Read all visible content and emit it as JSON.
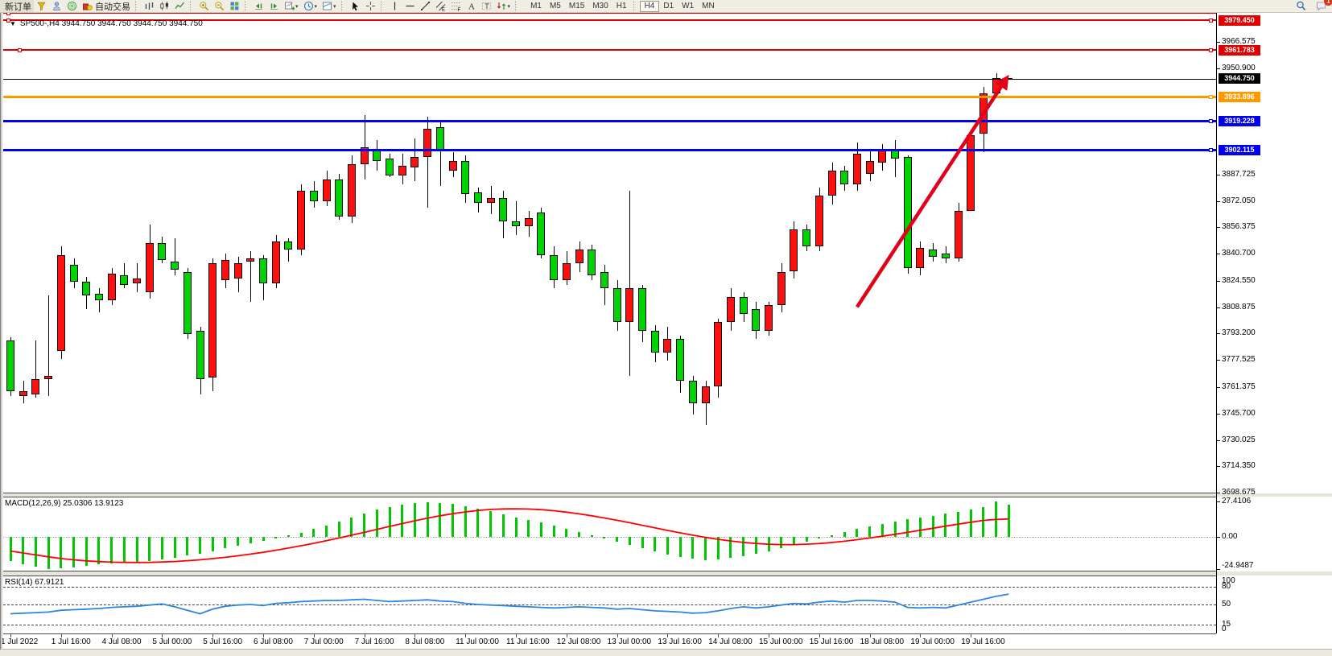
{
  "toolbar": {
    "new_order_label": "新订单",
    "auto_trading_label": "自动交易",
    "left_items": [
      {
        "type": "button",
        "name": "new-order-button",
        "label": "新订单"
      },
      {
        "type": "icon",
        "name": "funnel-icon",
        "icon": "funnel"
      },
      {
        "type": "icon",
        "name": "profile-icon",
        "icon": "person"
      },
      {
        "type": "icon",
        "name": "market-watch-icon",
        "icon": "sonar"
      },
      {
        "type": "button-icon",
        "name": "auto-trading-button",
        "icon": "autotrade",
        "label": "自动交易"
      },
      {
        "type": "sep"
      },
      {
        "type": "icon",
        "name": "bar-chart-icon",
        "icon": "bars"
      },
      {
        "type": "icon",
        "name": "candlestick-chart-icon",
        "icon": "candles"
      },
      {
        "type": "icon",
        "name": "line-chart-icon",
        "icon": "linechart"
      },
      {
        "type": "sep"
      },
      {
        "type": "icon",
        "name": "zoom-in-icon",
        "icon": "zoomin"
      },
      {
        "type": "icon",
        "name": "zoom-out-icon",
        "icon": "zoomout"
      },
      {
        "type": "icon",
        "name": "tile-windows-icon",
        "icon": "tile"
      },
      {
        "type": "sep"
      },
      {
        "type": "icon",
        "name": "auto-scroll-icon",
        "icon": "autoscroll"
      },
      {
        "type": "icon",
        "name": "chart-shift-icon",
        "icon": "chartshift"
      },
      {
        "type": "icon-dd",
        "name": "new-chart-icon",
        "icon": "newchart"
      },
      {
        "type": "icon-dd",
        "name": "period-clock-icon",
        "icon": "clock"
      },
      {
        "type": "icon-dd",
        "name": "template-icon",
        "icon": "template"
      },
      {
        "type": "sep"
      },
      {
        "type": "icon",
        "name": "cursor-icon",
        "icon": "cursor"
      },
      {
        "type": "icon",
        "name": "crosshair-icon",
        "icon": "crosshair"
      },
      {
        "type": "sep"
      },
      {
        "type": "icon",
        "name": "vertical-line-icon",
        "icon": "vline"
      },
      {
        "type": "icon",
        "name": "horizontal-line-icon",
        "icon": "hline"
      },
      {
        "type": "icon",
        "name": "trendline-icon",
        "icon": "trend"
      },
      {
        "type": "icon",
        "name": "equidistant-channel-icon",
        "icon": "channel"
      },
      {
        "type": "icon",
        "name": "fibonacci-icon",
        "icon": "fib"
      },
      {
        "type": "icon",
        "name": "text-icon",
        "icon": "textA"
      },
      {
        "type": "icon",
        "name": "text-label-icon",
        "icon": "labelT"
      },
      {
        "type": "icon-dd",
        "name": "arrows-icon",
        "icon": "arrows"
      },
      {
        "type": "sep"
      }
    ],
    "timeframes": [
      "M1",
      "M5",
      "M15",
      "M30",
      "H1",
      "H4",
      "D1",
      "W1",
      "MN"
    ],
    "active_timeframe": "H4",
    "search_tooltip": "search-icon",
    "notification_count": "1"
  },
  "chart": {
    "title_text": "SP500-,H4  3944.750 3944.750 3944.750 3944.750",
    "symbol": "SP500-",
    "period": "H4",
    "ohlc": [
      "3944.750",
      "3944.750",
      "3944.750",
      "3944.750"
    ]
  },
  "indicators": {
    "macd_label": "MACD(12,26,9) 25.0306 13.9123",
    "rsi_label": "RSI(14) 67.9121"
  },
  "chart_data": {
    "type": "candlestick",
    "title": "SP500- H4",
    "colors": {
      "bull": "#FF1010",
      "bear": "#00D400",
      "wick": "#000000",
      "macd_hist": "#00C800",
      "macd_signal": "#FF0000",
      "rsi_line": "#2E86E0",
      "arrow": "#E10019",
      "bid_line": "#000000"
    },
    "price_axis_ticks": [
      "3966.575",
      "3950.900",
      "3887.725",
      "3872.050",
      "3856.375",
      "3840.700",
      "3824.550",
      "3808.875",
      "3793.200",
      "3777.525",
      "3761.375",
      "3745.700",
      "3730.025",
      "3714.350",
      "3698.675"
    ],
    "hlines": [
      {
        "price": 3983.8,
        "color": "#E00000",
        "width": 2,
        "label": null,
        "left_handles": [
          8
        ]
      },
      {
        "price": 3979.45,
        "color": "#E00000",
        "width": 2,
        "label": "3979.450",
        "left_handles": [
          8
        ],
        "right_handle": true
      },
      {
        "price": 3961.783,
        "color": "#E00000",
        "width": 2,
        "label": "3961.783",
        "left_handles": [
          22
        ],
        "right_handle": true
      },
      {
        "price": 3933.896,
        "color": "#FF9900",
        "width": 3,
        "label": "3933.896",
        "right_handle": true
      },
      {
        "price": 3919.228,
        "color": "#0000EE",
        "width": 3,
        "label": "3919.228",
        "right_handle": true
      },
      {
        "price": 3902.115,
        "color": "#0000EE",
        "width": 3,
        "label": "3902.115",
        "right_handle": true
      }
    ],
    "bid": {
      "price": 3944.75,
      "label": "3944.750"
    },
    "time_labels": [
      "1 Jul 2022",
      "1 Jul 16:00",
      "4 Jul 08:00",
      "5 Jul 00:00",
      "5 Jul 16:00",
      "6 Jul 08:00",
      "7 Jul 00:00",
      "7 Jul 16:00",
      "8 Jul 08:00",
      "11 Jul 00:00",
      "11 Jul 16:00",
      "12 Jul 08:00",
      "13 Jul 00:00",
      "13 Jul 16:00",
      "14 Jul 08:00",
      "15 Jul 00:00",
      "15 Jul 16:00",
      "18 Jul 08:00",
      "19 Jul 00:00",
      "19 Jul 16:00"
    ],
    "candles_ohlc": [
      [
        3789,
        3791,
        3756,
        3759
      ],
      [
        3756,
        3765,
        3752,
        3759
      ],
      [
        3757,
        3789,
        3755,
        3766
      ],
      [
        3766,
        3816,
        3756,
        3768
      ],
      [
        3783,
        3845,
        3778,
        3840
      ],
      [
        3834,
        3838,
        3820,
        3824
      ],
      [
        3824,
        3827,
        3808,
        3816
      ],
      [
        3817,
        3820,
        3806,
        3813
      ],
      [
        3813,
        3832,
        3810,
        3829
      ],
      [
        3828,
        3835,
        3820,
        3822
      ],
      [
        3823,
        3835,
        3818,
        3826
      ],
      [
        3818,
        3858,
        3814,
        3847
      ],
      [
        3847,
        3851,
        3835,
        3837
      ],
      [
        3836,
        3850,
        3828,
        3831
      ],
      [
        3830,
        3832,
        3790,
        3793
      ],
      [
        3795,
        3797,
        3757,
        3766
      ],
      [
        3767,
        3838,
        3759,
        3835
      ],
      [
        3825,
        3841,
        3820,
        3837
      ],
      [
        3826,
        3839,
        3818,
        3835
      ],
      [
        3836,
        3842,
        3812,
        3838
      ],
      [
        3838,
        3840,
        3813,
        3823
      ],
      [
        3823,
        3852,
        3820,
        3848
      ],
      [
        3848,
        3850,
        3836,
        3843
      ],
      [
        3843,
        3882,
        3840,
        3878
      ],
      [
        3878,
        3884,
        3868,
        3872
      ],
      [
        3872,
        3890,
        3869,
        3885
      ],
      [
        3885,
        3888,
        3861,
        3863
      ],
      [
        3863,
        3899,
        3859,
        3894
      ],
      [
        3894,
        3923,
        3885,
        3904
      ],
      [
        3903,
        3908,
        3890,
        3896
      ],
      [
        3897,
        3900,
        3886,
        3887
      ],
      [
        3887,
        3900,
        3882,
        3893
      ],
      [
        3892,
        3909,
        3884,
        3898
      ],
      [
        3898,
        3922,
        3868,
        3915
      ],
      [
        3916,
        3919,
        3881,
        3902
      ],
      [
        3890,
        3901,
        3886,
        3896
      ],
      [
        3896,
        3899,
        3871,
        3876
      ],
      [
        3877,
        3880,
        3865,
        3871
      ],
      [
        3871,
        3881,
        3864,
        3874
      ],
      [
        3874,
        3878,
        3850,
        3860
      ],
      [
        3860,
        3872,
        3852,
        3857
      ],
      [
        3857,
        3866,
        3851,
        3862
      ],
      [
        3865,
        3868,
        3838,
        3840
      ],
      [
        3840,
        3845,
        3820,
        3825
      ],
      [
        3825,
        3842,
        3822,
        3835
      ],
      [
        3835,
        3848,
        3830,
        3843
      ],
      [
        3843,
        3846,
        3825,
        3828
      ],
      [
        3830,
        3834,
        3810,
        3820
      ],
      [
        3820,
        3825,
        3795,
        3800
      ],
      [
        3800,
        3878,
        3768,
        3820
      ],
      [
        3820,
        3822,
        3788,
        3795
      ],
      [
        3795,
        3798,
        3776,
        3782
      ],
      [
        3782,
        3797,
        3777,
        3790
      ],
      [
        3790,
        3792,
        3758,
        3765
      ],
      [
        3765,
        3768,
        3745,
        3752
      ],
      [
        3752,
        3765,
        3739,
        3762
      ],
      [
        3762,
        3802,
        3755,
        3800
      ],
      [
        3800,
        3820,
        3795,
        3815
      ],
      [
        3815,
        3818,
        3800,
        3805
      ],
      [
        3808,
        3812,
        3790,
        3795
      ],
      [
        3795,
        3812,
        3792,
        3810
      ],
      [
        3810,
        3835,
        3806,
        3830
      ],
      [
        3830,
        3860,
        3826,
        3855
      ],
      [
        3855,
        3858,
        3842,
        3845
      ],
      [
        3845,
        3880,
        3842,
        3875
      ],
      [
        3875,
        3895,
        3870,
        3890
      ],
      [
        3890,
        3893,
        3878,
        3882
      ],
      [
        3882,
        3907,
        3878,
        3900
      ],
      [
        3888,
        3902,
        3884,
        3896
      ],
      [
        3895,
        3906,
        3890,
        3903
      ],
      [
        3902,
        3908,
        3886,
        3897
      ],
      [
        3898,
        3899,
        3829,
        3832
      ],
      [
        3832,
        3848,
        3828,
        3844
      ],
      [
        3843,
        3847,
        3836,
        3839
      ],
      [
        3841,
        3845,
        3835,
        3838
      ],
      [
        3838,
        3871,
        3836,
        3866
      ],
      [
        3866,
        3911,
        3866,
        3911
      ],
      [
        3912,
        3940,
        3901,
        3936
      ],
      [
        3936,
        3948,
        3934,
        3945
      ],
      [
        3945,
        3945,
        3944.75,
        3944.75
      ]
    ],
    "arrow": {
      "from": {
        "bar": 67,
        "price": 3809
      },
      "to": {
        "bar": 78.8,
        "price": 3944.5
      }
    },
    "macd": {
      "label": "MACD(12,26,9) 25.0306 13.9123",
      "scale_ticks": [
        {
          "v": 27.4106,
          "label": "27.4106"
        },
        {
          "v": 0,
          "label": "0.00"
        },
        {
          "v": -24.9487,
          "label": "-24.9487"
        }
      ],
      "histogram": [
        -19,
        -21,
        -23,
        -24.9,
        -24.5,
        -23.5,
        -22.5,
        -21.5,
        -20.5,
        -20,
        -19.5,
        -18.5,
        -17.5,
        -16,
        -14.5,
        -13,
        -11,
        -9,
        -7,
        -5,
        -3,
        -1,
        1,
        3,
        6,
        9,
        12,
        15,
        18,
        21,
        23,
        25,
        26.5,
        27,
        26.5,
        25.5,
        24,
        22,
        20,
        17.5,
        15,
        13,
        11,
        9,
        6.5,
        4,
        1.5,
        -1,
        -3.5,
        -6,
        -8.5,
        -11,
        -13.5,
        -15.5,
        -17,
        -18,
        -17.5,
        -16.5,
        -15,
        -13,
        -11,
        -8.5,
        -6,
        -3.5,
        -1,
        1.5,
        4,
        6,
        8,
        10,
        12,
        13.5,
        15,
        16.5,
        18,
        19.5,
        21,
        23,
        27.41,
        25.03
      ],
      "signal": [
        -11,
        -12.5,
        -14,
        -15.5,
        -16.8,
        -17.8,
        -18.6,
        -19.2,
        -19.6,
        -19.8,
        -19.9,
        -19.8,
        -19.5,
        -19.1,
        -18.5,
        -17.8,
        -16.9,
        -15.9,
        -14.7,
        -13.4,
        -12,
        -10.4,
        -8.7,
        -6.9,
        -5,
        -3,
        -0.9,
        1.3,
        3.5,
        5.8,
        8.1,
        10.3,
        12.5,
        14.5,
        16.4,
        18,
        19.4,
        20.5,
        21.3,
        21.7,
        21.8,
        21.6,
        21.1,
        20.3,
        19.2,
        17.9,
        16.4,
        14.7,
        12.9,
        11,
        9,
        7,
        5,
        3.1,
        1.3,
        -0.4,
        -1.9,
        -3.2,
        -4.3,
        -5.1,
        -5.7,
        -6,
        -6,
        -5.7,
        -5.2,
        -4.4,
        -3.4,
        -2.2,
        -0.9,
        0.5,
        2,
        3.5,
        5.1,
        6.7,
        8.3,
        9.9,
        11.4,
        12.8,
        13.5,
        13.91
      ]
    },
    "rsi": {
      "label": "RSI(14) 67.9121",
      "scale_ticks": [
        {
          "v": 100,
          "label": "100"
        },
        {
          "v": 80,
          "label": "80"
        },
        {
          "v": 50,
          "label": "50"
        },
        {
          "v": 15,
          "label": "15"
        },
        {
          "v": 0,
          "label": "0"
        }
      ],
      "levels": [
        80,
        50,
        15
      ],
      "values": [
        34,
        35,
        36,
        37,
        40,
        41,
        42,
        43,
        45,
        46,
        47,
        49,
        51,
        46,
        40,
        34,
        42,
        47,
        49,
        50,
        48,
        52,
        53,
        55,
        56,
        57,
        57,
        58,
        59,
        57,
        55,
        56,
        57,
        58,
        56,
        55,
        52,
        50,
        49,
        48,
        47,
        46,
        45,
        44,
        45,
        46,
        45,
        44,
        42,
        43,
        41,
        39,
        38,
        37,
        35,
        36,
        39,
        43,
        46,
        44,
        46,
        49,
        52,
        51,
        54,
        56,
        54,
        57,
        57,
        56,
        54,
        45,
        44,
        45,
        44,
        49,
        54,
        59,
        64,
        67.91
      ]
    }
  }
}
